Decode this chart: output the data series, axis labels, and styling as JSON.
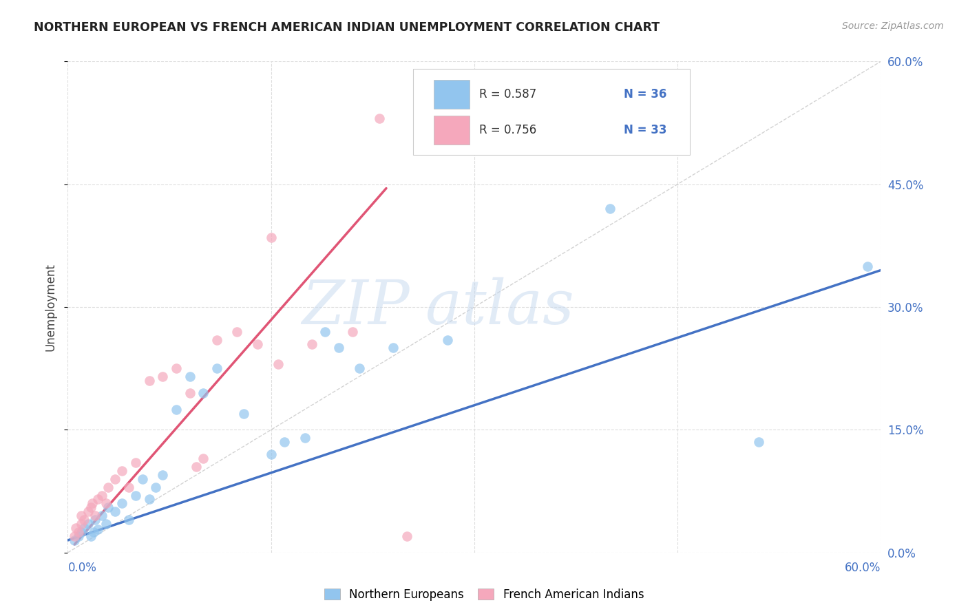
{
  "title": "NORTHERN EUROPEAN VS FRENCH AMERICAN INDIAN UNEMPLOYMENT CORRELATION CHART",
  "source": "Source: ZipAtlas.com",
  "ylabel": "Unemployment",
  "xlim": [
    0.0,
    0.6
  ],
  "ylim": [
    0.0,
    0.6
  ],
  "xticks": [
    0.0,
    0.15,
    0.3,
    0.45,
    0.6
  ],
  "yticks": [
    0.0,
    0.15,
    0.3,
    0.45,
    0.6
  ],
  "xticklabels_left": "0.0%",
  "xticklabels_right": "60.0%",
  "right_yticklabels": [
    "0.0%",
    "15.0%",
    "30.0%",
    "45.0%",
    "60.0%"
  ],
  "blue_color": "#92C5EE",
  "pink_color": "#F5A8BC",
  "blue_line_color": "#4472C4",
  "pink_line_color": "#E05575",
  "diag_line_color": "#C8C8C8",
  "watermark_zip": "ZIP",
  "watermark_atlas": "atlas",
  "legend_r_blue": "R = 0.587",
  "legend_n_blue": "N = 36",
  "legend_r_pink": "R = 0.756",
  "legend_n_pink": "N = 33",
  "blue_scatter_x": [
    0.005,
    0.008,
    0.01,
    0.012,
    0.015,
    0.017,
    0.019,
    0.02,
    0.022,
    0.025,
    0.028,
    0.03,
    0.035,
    0.04,
    0.045,
    0.05,
    0.055,
    0.06,
    0.065,
    0.07,
    0.08,
    0.09,
    0.1,
    0.11,
    0.13,
    0.15,
    0.16,
    0.175,
    0.19,
    0.2,
    0.215,
    0.24,
    0.28,
    0.4,
    0.51,
    0.59
  ],
  "blue_scatter_y": [
    0.015,
    0.02,
    0.025,
    0.03,
    0.035,
    0.02,
    0.025,
    0.04,
    0.028,
    0.045,
    0.035,
    0.055,
    0.05,
    0.06,
    0.04,
    0.07,
    0.09,
    0.065,
    0.08,
    0.095,
    0.175,
    0.215,
    0.195,
    0.225,
    0.17,
    0.12,
    0.135,
    0.14,
    0.27,
    0.25,
    0.225,
    0.25,
    0.26,
    0.42,
    0.135,
    0.35
  ],
  "pink_scatter_x": [
    0.005,
    0.006,
    0.008,
    0.01,
    0.01,
    0.012,
    0.015,
    0.017,
    0.018,
    0.02,
    0.022,
    0.025,
    0.028,
    0.03,
    0.035,
    0.04,
    0.045,
    0.05,
    0.06,
    0.07,
    0.08,
    0.09,
    0.095,
    0.1,
    0.11,
    0.125,
    0.14,
    0.15,
    0.155,
    0.18,
    0.21,
    0.23,
    0.25
  ],
  "pink_scatter_y": [
    0.02,
    0.03,
    0.025,
    0.035,
    0.045,
    0.04,
    0.05,
    0.055,
    0.06,
    0.045,
    0.065,
    0.07,
    0.06,
    0.08,
    0.09,
    0.1,
    0.08,
    0.11,
    0.21,
    0.215,
    0.225,
    0.195,
    0.105,
    0.115,
    0.26,
    0.27,
    0.255,
    0.385,
    0.23,
    0.255,
    0.27,
    0.53,
    0.02
  ],
  "blue_line_x": [
    0.0,
    0.6
  ],
  "blue_line_y": [
    0.015,
    0.345
  ],
  "pink_line_x": [
    0.005,
    0.235
  ],
  "pink_line_y": [
    0.01,
    0.445
  ],
  "background_color": "#FFFFFF",
  "grid_color": "#DDDDDD"
}
